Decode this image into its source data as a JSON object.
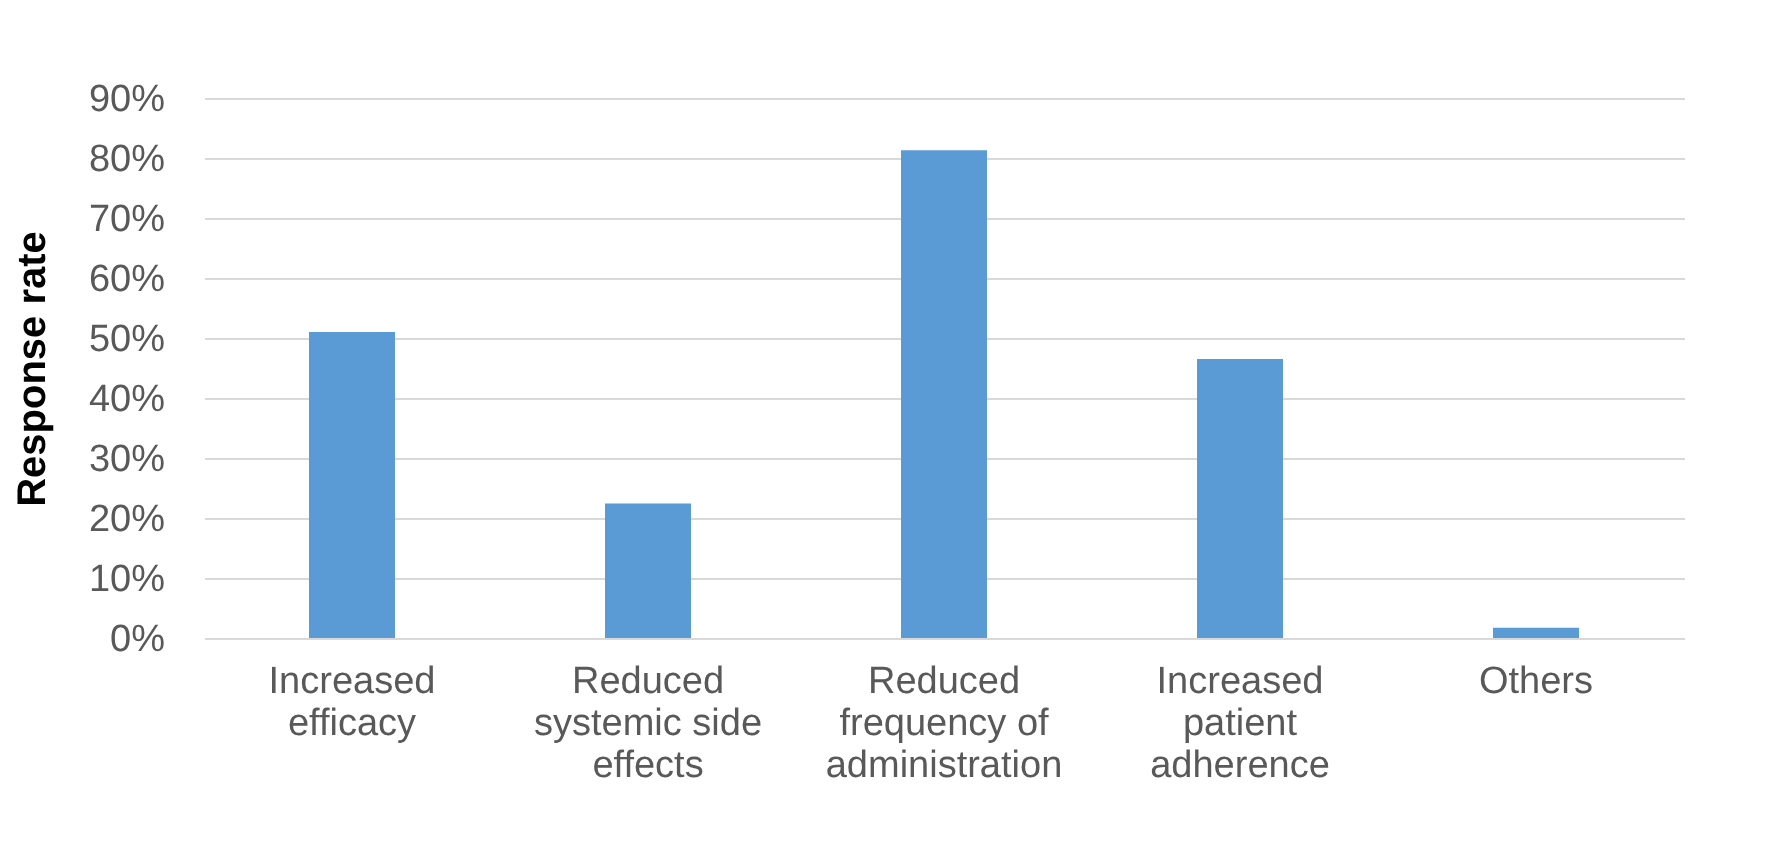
{
  "chart_data": {
    "type": "bar",
    "ylabel": "Response rate",
    "categories": [
      "Increased efficacy",
      "Reduced systemic side effects",
      "Reduced frequency of administration",
      "Increased patient adherence",
      "Others"
    ],
    "values": [
      51,
      22.4,
      81.3,
      46.5,
      1.7
    ],
    "color": "#5b9bd5",
    "ylim": [
      0,
      90
    ],
    "yticks": [
      {
        "value": 0,
        "label": "0%"
      },
      {
        "value": 10,
        "label": "10%"
      },
      {
        "value": 20,
        "label": "20%"
      },
      {
        "value": 30,
        "label": "30%"
      },
      {
        "value": 40,
        "label": "40%"
      },
      {
        "value": 50,
        "label": "50%"
      },
      {
        "value": 60,
        "label": "60%"
      },
      {
        "value": 70,
        "label": "70%"
      },
      {
        "value": 80,
        "label": "80%"
      },
      {
        "value": 90,
        "label": "90%"
      }
    ],
    "grid": "y"
  }
}
